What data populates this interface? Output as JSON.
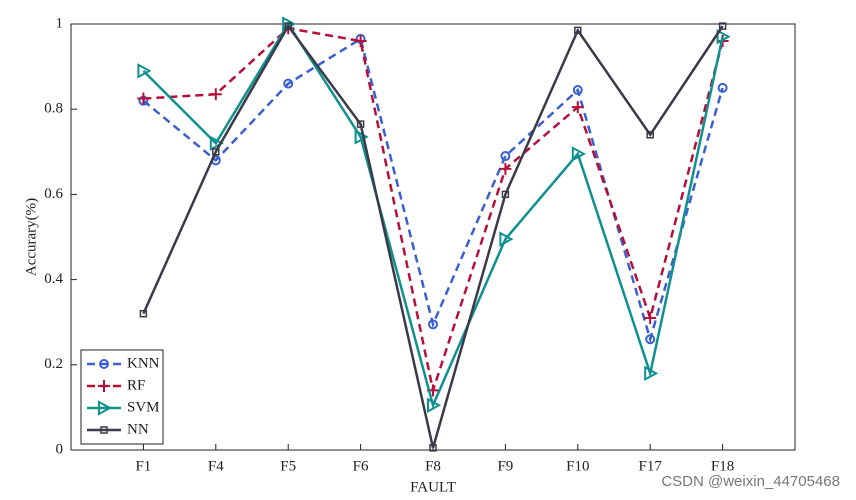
{
  "chart_data": {
    "type": "line",
    "x_label": "FAULT",
    "y_label": "Accurary(%)",
    "categories": [
      "F1",
      "F4",
      "F5",
      "F6",
      "F8",
      "F9",
      "F10",
      "F17",
      "F18"
    ],
    "series": [
      {
        "name": "KNN",
        "color": "#3a5fd0",
        "dash": true,
        "marker": "circle",
        "values": [
          0.82,
          0.68,
          0.86,
          0.965,
          0.295,
          0.69,
          0.845,
          0.26,
          0.85
        ]
      },
      {
        "name": "RF",
        "color": "#b5103a",
        "dash": true,
        "marker": "plus",
        "values": [
          0.825,
          0.835,
          0.99,
          0.96,
          0.14,
          0.66,
          0.805,
          0.31,
          0.96
        ]
      },
      {
        "name": "SVM",
        "color": "#109090",
        "dash": false,
        "marker": "triangle",
        "values": [
          0.89,
          0.72,
          1.0,
          0.735,
          0.105,
          0.495,
          0.695,
          0.18,
          0.97
        ]
      },
      {
        "name": "NN",
        "color": "#3a3a48",
        "dash": false,
        "marker": "square",
        "values": [
          0.32,
          0.7,
          0.995,
          0.765,
          0.005,
          0.6,
          0.985,
          0.74,
          0.995
        ]
      }
    ],
    "ylim": [
      0,
      1
    ],
    "yticks": [
      0,
      0.2,
      0.4,
      0.6,
      0.8,
      1
    ],
    "legend": "lower-left",
    "watermark": "CSDN @weixin_44705468"
  }
}
